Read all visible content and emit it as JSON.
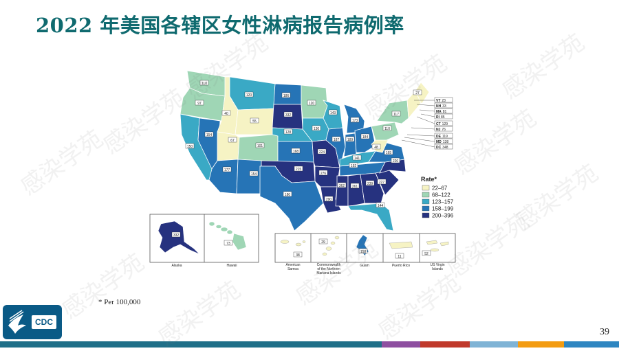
{
  "slide": {
    "title": "2022 年美国各辖区女性淋病报告病例率",
    "footnote": "* Per 100,000",
    "page_number": "39",
    "logo_text": "CDC",
    "watermark": "感染学苑"
  },
  "legend": {
    "title": "Rate*",
    "items": [
      {
        "label": "22–67",
        "color": "#f6f3c4"
      },
      {
        "label": "68–122",
        "color": "#9fd6b5"
      },
      {
        "label": "123–157",
        "color": "#3aa9c5"
      },
      {
        "label": "158–199",
        "color": "#2674b6"
      },
      {
        "label": "200–396",
        "color": "#26327f"
      }
    ]
  },
  "state_labels": [
    {
      "id": "WA",
      "value": "110"
    },
    {
      "id": "OR",
      "value": "97"
    },
    {
      "id": "CA",
      "value": "150"
    },
    {
      "id": "NV",
      "value": "154"
    },
    {
      "id": "ID",
      "value": "40"
    },
    {
      "id": "MT",
      "value": "120"
    },
    {
      "id": "WY",
      "value": "55"
    },
    {
      "id": "UT",
      "value": "67"
    },
    {
      "id": "AZ",
      "value": "177"
    },
    {
      "id": "CO",
      "value": "101"
    },
    {
      "id": "NM",
      "value": "154"
    },
    {
      "id": "ND",
      "value": "186"
    },
    {
      "id": "SD",
      "value": "332"
    },
    {
      "id": "NE",
      "value": "128"
    },
    {
      "id": "KS",
      "value": "168"
    },
    {
      "id": "OK",
      "value": "215"
    },
    {
      "id": "TX",
      "value": "180"
    },
    {
      "id": "MN",
      "value": "120"
    },
    {
      "id": "IA",
      "value": "130"
    },
    {
      "id": "MO",
      "value": "224"
    },
    {
      "id": "AR",
      "value": "276"
    },
    {
      "id": "LA",
      "value": "290"
    },
    {
      "id": "WI",
      "value": "143"
    },
    {
      "id": "IL",
      "value": "187"
    },
    {
      "id": "MI",
      "value": "173"
    },
    {
      "id": "IN",
      "value": "189"
    },
    {
      "id": "OH",
      "value": "184"
    },
    {
      "id": "KY",
      "value": "141"
    },
    {
      "id": "TN",
      "value": "192"
    },
    {
      "id": "MS",
      "value": "362"
    },
    {
      "id": "AL",
      "value": "261"
    },
    {
      "id": "GA",
      "value": "239"
    },
    {
      "id": "FL",
      "value": "144"
    },
    {
      "id": "SC",
      "value": "227"
    },
    {
      "id": "NC",
      "value": "220"
    },
    {
      "id": "VA",
      "value": "165"
    },
    {
      "id": "WV",
      "value": "48"
    },
    {
      "id": "PA",
      "value": "110"
    },
    {
      "id": "NY",
      "value": "117"
    },
    {
      "id": "ME",
      "value": "27"
    }
  ],
  "callouts": [
    {
      "state": "VT",
      "value": "23"
    },
    {
      "state": "NH",
      "value": "33"
    },
    {
      "state": "MA",
      "value": "81"
    },
    {
      "state": "RI",
      "value": "85"
    },
    {
      "state": "CT",
      "value": "129"
    },
    {
      "state": "NJ",
      "value": "76"
    },
    {
      "state": "DE",
      "value": "119"
    },
    {
      "state": "MD",
      "value": "138"
    },
    {
      "state": "DC",
      "value": "348"
    }
  ],
  "insets": [
    {
      "name": "Alaska",
      "value": "332"
    },
    {
      "name": "Hawaii",
      "value": "73"
    },
    {
      "name": "American Samoa",
      "value": "38"
    },
    {
      "name": "Commonwealth of the Northern Mariana Islands",
      "value": "29"
    },
    {
      "name": "Guam",
      "value": "158"
    },
    {
      "name": "Puerto Rico",
      "value": "11"
    },
    {
      "name": "US Virgin Islands",
      "value": "52"
    }
  ],
  "colors": {
    "title": "#0f6a6f",
    "stripe": [
      "#1f6f88",
      "#1f6f88",
      "#8e4fa0",
      "#c0392b",
      "#7fb3d5",
      "#f39c12",
      "#2e86c1"
    ]
  },
  "icons": {
    "logo": "cdc-eagle-logo"
  }
}
